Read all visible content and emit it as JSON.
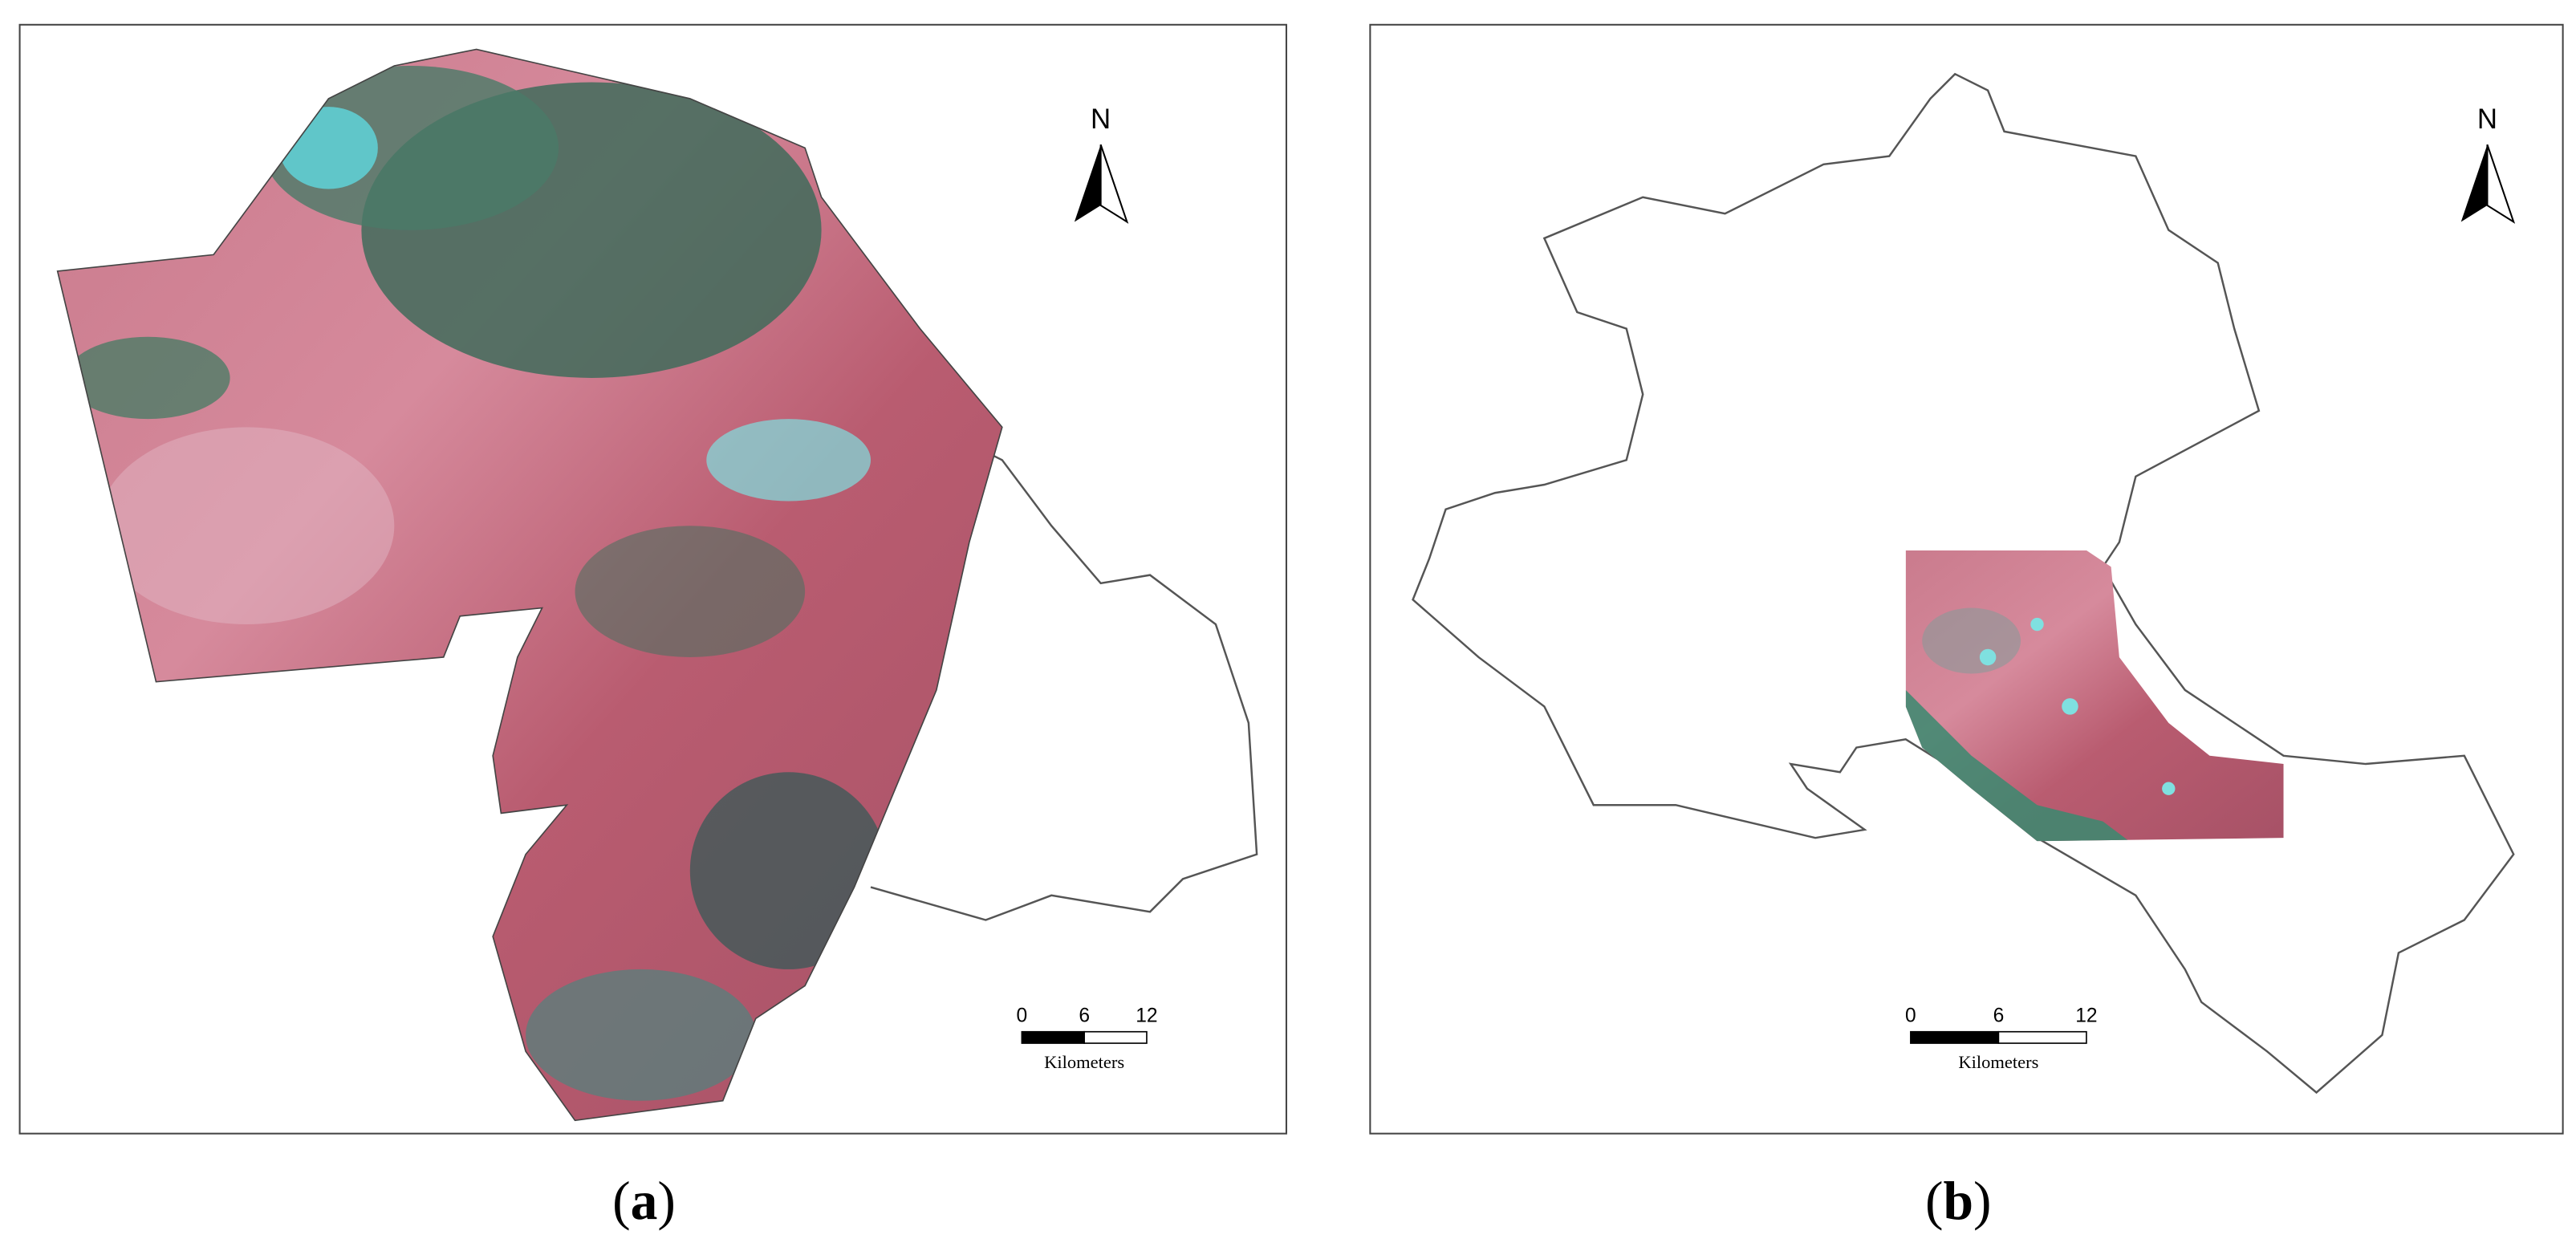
{
  "panels": [
    {
      "north": "N",
      "scale": {
        "ticks": [
          0,
          6,
          12
        ],
        "unit": "Kilometers"
      },
      "caption": {
        "open": "(",
        "letter": "a",
        "close": ")"
      }
    },
    {
      "north": "N",
      "scale": {
        "ticks": [
          0,
          6,
          12
        ],
        "unit": "Kilometers"
      },
      "caption": {
        "open": "(",
        "letter": "b",
        "close": ")"
      }
    }
  ]
}
